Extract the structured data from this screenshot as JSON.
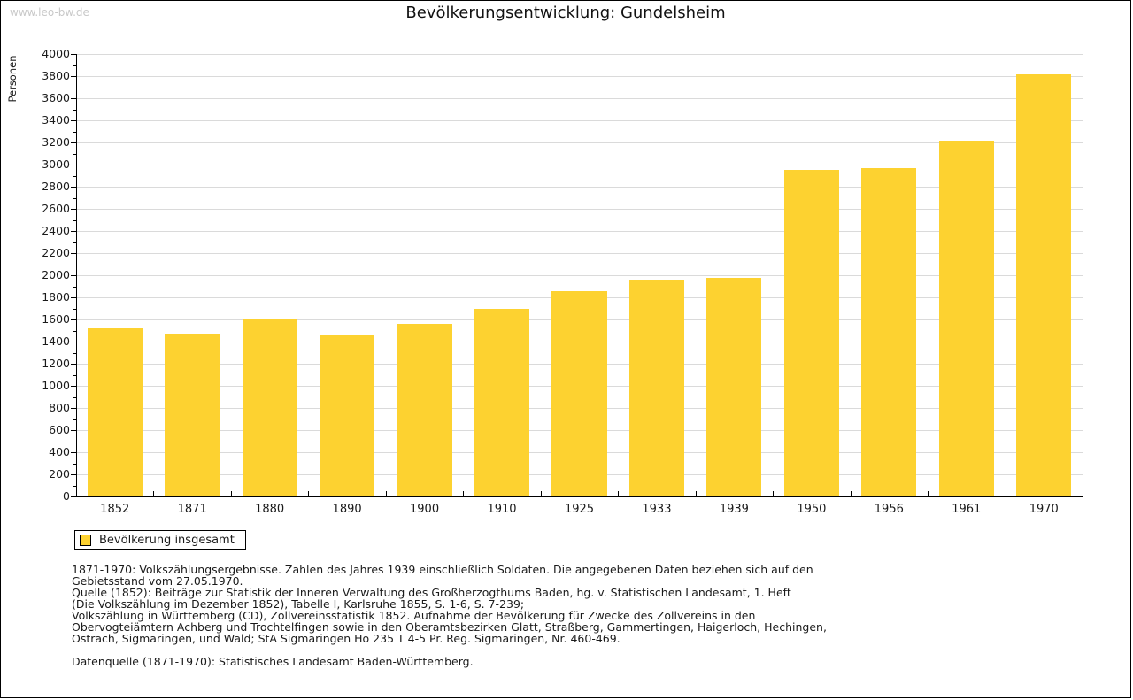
{
  "page": {
    "watermark": "www.leo-bw.de",
    "title": "Bevölkerungsentwicklung: Gundelsheim"
  },
  "colors": {
    "bar": "#FDD230",
    "grid": "#DADADA",
    "axis": "#000000",
    "watermark": "#C9C9C9"
  },
  "legend": {
    "label": "Bevölkerung insgesamt",
    "swatch_color": "#FDD230"
  },
  "chart_data": {
    "type": "bar",
    "title": "Bevölkerungsentwicklung: Gundelsheim",
    "xlabel": "",
    "ylabel": "Personen",
    "ylim": [
      0,
      4000
    ],
    "ytick_step": 200,
    "minor_tick_step": 100,
    "grid": true,
    "legend_position": "bottom-left",
    "categories": [
      "1852",
      "1871",
      "1880",
      "1890",
      "1900",
      "1910",
      "1925",
      "1933",
      "1939",
      "1950",
      "1956",
      "1961",
      "1970"
    ],
    "series": [
      {
        "name": "Bevölkerung insgesamt",
        "color": "#FDD230",
        "values": [
          1520,
          1470,
          1600,
          1460,
          1560,
          1700,
          1860,
          1960,
          1980,
          2950,
          2970,
          3220,
          3820
        ]
      }
    ]
  },
  "footnotes": [
    "1871-1970: Volkszählungsergebnisse. Zahlen des Jahres 1939 einschließlich Soldaten. Die angegebenen Daten beziehen sich auf den",
    "Gebietsstand vom 27.05.1970.",
    "Quelle (1852): Beiträge zur Statistik der Inneren Verwaltung des Großherzogthums Baden, hg. v. Statistischen Landesamt, 1. Heft",
    "(Die Volkszählung im Dezember 1852), Tabelle I, Karlsruhe 1855, S. 1-6, S. 7-239;",
    "Volkszählung in Württemberg (CD), Zollvereinsstatistik 1852. Aufnahme der Bevölkerung für Zwecke des Zollvereins in den",
    "Obervogteiämtern Achberg und Trochtelfingen sowie in den Oberamtsbezirken Glatt, Straßberg, Gammertingen, Haigerloch, Hechingen,",
    "Ostrach, Sigmaringen, und Wald; StA Sigmaringen Ho 235 T 4-5 Pr. Reg. Sigmaringen, Nr. 460-469.",
    "",
    "Datenquelle (1871-1970): Statistisches Landesamt Baden-Württemberg."
  ]
}
